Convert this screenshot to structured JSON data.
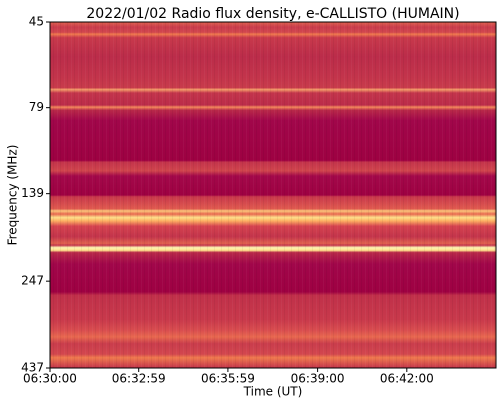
{
  "chart_data": {
    "type": "spectrogram",
    "title": "2022/01/02  Radio flux density, e-CALLISTO (HUMAIN)",
    "x_label": "Time (UT)",
    "y_label": "Frequency (MHz)",
    "xlim": [
      23400,
      24300
    ],
    "xticks": [
      {
        "value": 23400,
        "label": "06:30:00"
      },
      {
        "value": 23579,
        "label": "06:32:59"
      },
      {
        "value": 23759,
        "label": "06:35:59"
      },
      {
        "value": 23940,
        "label": "06:39:00"
      },
      {
        "value": 24120,
        "label": "06:42:00"
      }
    ],
    "ylim": [
      45,
      437
    ],
    "y_scale": "log",
    "y_inverted": true,
    "yticks": [
      45,
      79,
      139,
      247,
      437
    ]
  }
}
